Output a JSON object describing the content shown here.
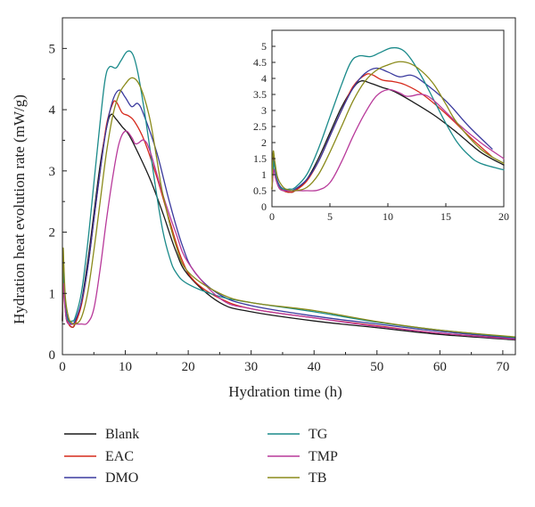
{
  "chart_data": {
    "type": "line",
    "xlabel": "Hydration time (h)",
    "ylabel": "Hydration heat evolution rate (mW/g)",
    "xlim": [
      0,
      72
    ],
    "ylim": [
      0,
      5.5
    ],
    "xticks": [
      "0",
      "10",
      "20",
      "30",
      "40",
      "50",
      "60",
      "70"
    ],
    "yticks": [
      "0",
      "1",
      "2",
      "3",
      "4",
      "5"
    ],
    "grid": false,
    "legend_position": "bottom",
    "inset": {
      "xlim": [
        0,
        20
      ],
      "ylim": [
        0,
        5.5
      ],
      "xticks": [
        "0",
        "5",
        "10",
        "15",
        "20"
      ],
      "yticks": [
        "0",
        "0.5",
        "1",
        "1.5",
        "2",
        "2.5",
        "3",
        "3.5",
        "4",
        "4.5",
        "5"
      ]
    },
    "series": [
      {
        "name": "Blank",
        "color": "#1a1a1a",
        "points": [
          [
            0,
            0.55
          ],
          [
            0.15,
            1.55
          ],
          [
            0.3,
            1.0
          ],
          [
            0.6,
            0.6
          ],
          [
            1,
            0.5
          ],
          [
            1.5,
            0.45
          ],
          [
            2,
            0.5
          ],
          [
            3,
            0.85
          ],
          [
            4,
            1.5
          ],
          [
            5,
            2.3
          ],
          [
            6,
            3.1
          ],
          [
            7,
            3.7
          ],
          [
            7.7,
            3.92
          ],
          [
            8.5,
            3.85
          ],
          [
            9.5,
            3.72
          ],
          [
            10.5,
            3.6
          ],
          [
            12,
            3.3
          ],
          [
            14,
            2.85
          ],
          [
            16,
            2.3
          ],
          [
            18,
            1.7
          ],
          [
            20,
            1.3
          ],
          [
            25,
            0.85
          ],
          [
            30,
            0.7
          ],
          [
            40,
            0.55
          ],
          [
            50,
            0.44
          ],
          [
            60,
            0.33
          ],
          [
            72,
            0.24
          ]
        ]
      },
      {
        "name": "EAC",
        "color": "#d62a1c",
        "points": [
          [
            0,
            0.55
          ],
          [
            0.15,
            1.5
          ],
          [
            0.3,
            1.05
          ],
          [
            0.6,
            0.65
          ],
          [
            1,
            0.5
          ],
          [
            1.5,
            0.45
          ],
          [
            2,
            0.5
          ],
          [
            3,
            0.8
          ],
          [
            4,
            1.4
          ],
          [
            5,
            2.2
          ],
          [
            6,
            3.0
          ],
          [
            7,
            3.75
          ],
          [
            8,
            4.1
          ],
          [
            8.6,
            4.12
          ],
          [
            9.5,
            3.95
          ],
          [
            10.5,
            3.9
          ],
          [
            11.5,
            3.8
          ],
          [
            13,
            3.5
          ],
          [
            15,
            2.9
          ],
          [
            17,
            2.2
          ],
          [
            19,
            1.55
          ],
          [
            21,
            1.2
          ],
          [
            25,
            0.92
          ],
          [
            30,
            0.75
          ],
          [
            40,
            0.6
          ],
          [
            50,
            0.47
          ],
          [
            60,
            0.35
          ],
          [
            72,
            0.26
          ]
        ]
      },
      {
        "name": "DMO",
        "color": "#3a3a9e",
        "points": [
          [
            0,
            0.55
          ],
          [
            0.15,
            1.45
          ],
          [
            0.3,
            1.05
          ],
          [
            0.6,
            0.7
          ],
          [
            1,
            0.55
          ],
          [
            1.5,
            0.5
          ],
          [
            2,
            0.55
          ],
          [
            3,
            0.85
          ],
          [
            4,
            1.4
          ],
          [
            5,
            2.2
          ],
          [
            6,
            3.0
          ],
          [
            7,
            3.7
          ],
          [
            8,
            4.15
          ],
          [
            9,
            4.32
          ],
          [
            10,
            4.2
          ],
          [
            11,
            4.05
          ],
          [
            12,
            4.1
          ],
          [
            13,
            3.9
          ],
          [
            15,
            3.3
          ],
          [
            17,
            2.5
          ],
          [
            19,
            1.8
          ],
          [
            21,
            1.35
          ],
          [
            25,
            0.98
          ],
          [
            30,
            0.8
          ],
          [
            40,
            0.63
          ],
          [
            50,
            0.5
          ],
          [
            60,
            0.38
          ],
          [
            72,
            0.27
          ]
        ]
      },
      {
        "name": "TG",
        "color": "#1a8a8a",
        "points": [
          [
            0,
            0.55
          ],
          [
            0.15,
            1.4
          ],
          [
            0.3,
            1.0
          ],
          [
            0.6,
            0.65
          ],
          [
            1,
            0.55
          ],
          [
            1.5,
            0.55
          ],
          [
            2,
            0.6
          ],
          [
            3,
            1.0
          ],
          [
            4,
            1.8
          ],
          [
            5,
            2.8
          ],
          [
            6,
            3.8
          ],
          [
            6.8,
            4.5
          ],
          [
            7.5,
            4.7
          ],
          [
            8.5,
            4.68
          ],
          [
            9.3,
            4.8
          ],
          [
            10.3,
            4.95
          ],
          [
            11.2,
            4.9
          ],
          [
            12,
            4.6
          ],
          [
            13,
            4.0
          ],
          [
            14,
            3.3
          ],
          [
            15,
            2.6
          ],
          [
            16,
            2.0
          ],
          [
            17,
            1.6
          ],
          [
            18,
            1.35
          ],
          [
            20,
            1.15
          ],
          [
            25,
            0.95
          ],
          [
            30,
            0.85
          ],
          [
            40,
            0.7
          ],
          [
            50,
            0.53
          ],
          [
            60,
            0.4
          ],
          [
            72,
            0.28
          ]
        ]
      },
      {
        "name": "TMP",
        "color": "#b8399a",
        "points": [
          [
            0,
            0.55
          ],
          [
            0.15,
            1.15
          ],
          [
            0.3,
            0.9
          ],
          [
            0.6,
            0.6
          ],
          [
            1,
            0.5
          ],
          [
            2,
            0.5
          ],
          [
            3,
            0.5
          ],
          [
            4,
            0.52
          ],
          [
            5,
            0.75
          ],
          [
            6,
            1.4
          ],
          [
            7,
            2.2
          ],
          [
            8,
            2.9
          ],
          [
            9,
            3.45
          ],
          [
            10,
            3.65
          ],
          [
            11,
            3.55
          ],
          [
            11.5,
            3.45
          ],
          [
            12,
            3.45
          ],
          [
            13,
            3.5
          ],
          [
            14,
            3.3
          ],
          [
            16,
            2.6
          ],
          [
            18,
            2.0
          ],
          [
            20,
            1.5
          ],
          [
            25,
            0.92
          ],
          [
            30,
            0.75
          ],
          [
            40,
            0.6
          ],
          [
            50,
            0.46
          ],
          [
            60,
            0.35
          ],
          [
            72,
            0.25
          ]
        ]
      },
      {
        "name": "TB",
        "color": "#8a8a1a",
        "points": [
          [
            0,
            0.55
          ],
          [
            0.1,
            1.7
          ],
          [
            0.25,
            1.4
          ],
          [
            0.5,
            0.9
          ],
          [
            1,
            0.6
          ],
          [
            1.5,
            0.52
          ],
          [
            2,
            0.5
          ],
          [
            3,
            0.6
          ],
          [
            4,
            1.0
          ],
          [
            5,
            1.7
          ],
          [
            6,
            2.5
          ],
          [
            7,
            3.3
          ],
          [
            8,
            3.9
          ],
          [
            9,
            4.25
          ],
          [
            10,
            4.42
          ],
          [
            11,
            4.52
          ],
          [
            12,
            4.45
          ],
          [
            13,
            4.2
          ],
          [
            14,
            3.8
          ],
          [
            15,
            3.2
          ],
          [
            16,
            2.6
          ],
          [
            18,
            1.8
          ],
          [
            20,
            1.35
          ],
          [
            25,
            1.0
          ],
          [
            30,
            0.85
          ],
          [
            40,
            0.72
          ],
          [
            50,
            0.54
          ],
          [
            60,
            0.4
          ],
          [
            72,
            0.29
          ]
        ]
      }
    ]
  }
}
